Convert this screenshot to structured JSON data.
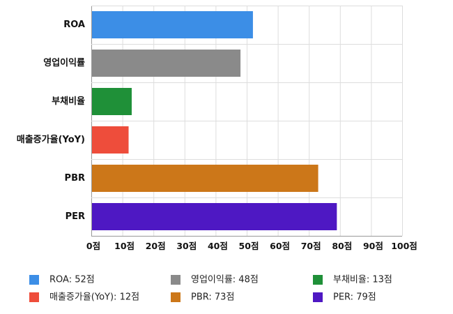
{
  "chart_data": {
    "type": "bar",
    "orientation": "horizontal",
    "categories": [
      "ROA",
      "영업이익률",
      "부채비율",
      "매출증가율(YoY)",
      "PBR",
      "PER"
    ],
    "values": [
      52,
      48,
      13,
      12,
      73,
      79
    ],
    "colors": [
      "#3c8ee6",
      "#8a8a8a",
      "#1f9038",
      "#ee4d3b",
      "#cc7719",
      "#4e18c3"
    ],
    "xlim": [
      0,
      100
    ],
    "x_ticks": [
      0,
      10,
      20,
      30,
      40,
      50,
      60,
      70,
      80,
      90,
      100
    ],
    "tick_suffix": "점",
    "grid": true,
    "legend_position": "bottom",
    "legend": [
      "ROA: 52점",
      "영업이익률: 48점",
      "부채비율: 13점",
      "매출증가율(YoY): 12점",
      "PBR: 73점",
      "PER: 79점"
    ],
    "title": "",
    "xlabel": "",
    "ylabel": ""
  }
}
